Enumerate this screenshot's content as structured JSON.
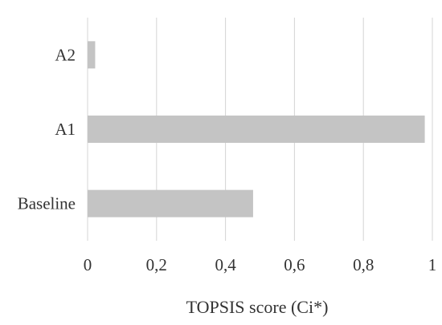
{
  "chart_data": {
    "type": "bar",
    "orientation": "horizontal",
    "categories": [
      "A2",
      "A1",
      "Baseline"
    ],
    "values": [
      0.022,
      0.978,
      0.48
    ],
    "xlabel": "TOPSIS score (Ci*)",
    "xlim": [
      0,
      1
    ],
    "xticks": [
      0,
      0.2,
      0.4,
      0.6,
      0.8,
      1
    ],
    "xtick_labels": [
      "0",
      "0,2",
      "0,4",
      "0,6",
      "0,8",
      "1"
    ],
    "grid": "vertical",
    "bar_color": "#c4c4c4",
    "grid_color": "#d4d4d4"
  }
}
